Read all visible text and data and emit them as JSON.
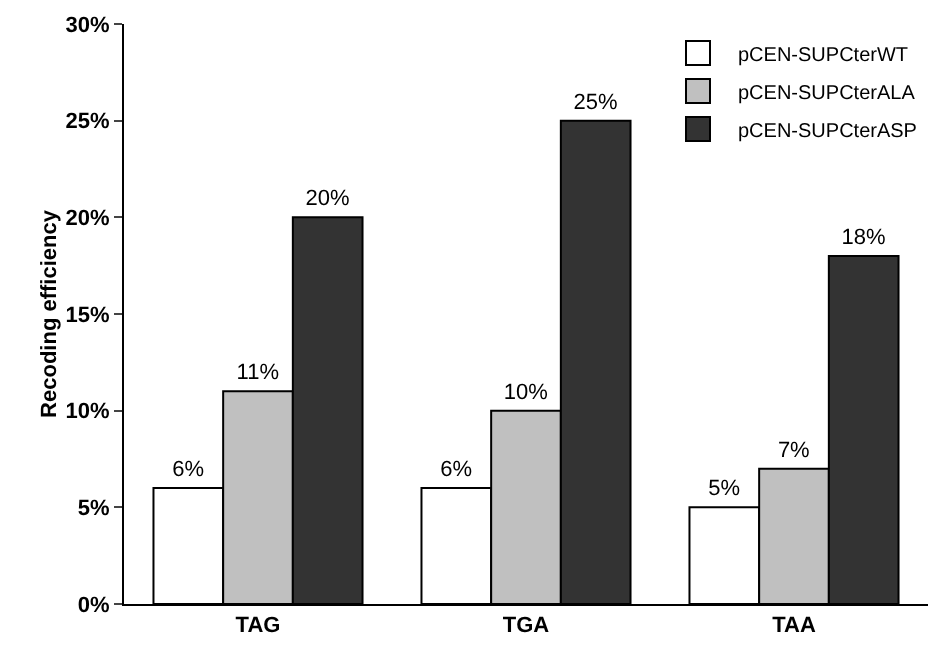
{
  "chart_data": {
    "type": "bar",
    "ylabel": "Recoding efficiency",
    "categories": [
      "TAG",
      "TGA",
      "TAA"
    ],
    "series": [
      {
        "name": "pCEN-SUPCterWT",
        "color": "#ffffff",
        "values": [
          6,
          6,
          5
        ],
        "value_labels": [
          "6%",
          "6%",
          "5%"
        ]
      },
      {
        "name": "pCEN-SUPCterALA",
        "color": "#c0c0c0",
        "values": [
          11,
          10,
          7
        ],
        "value_labels": [
          "11%",
          "10%",
          "7%"
        ]
      },
      {
        "name": "pCEN-SUPCterASP",
        "color": "#333333",
        "values": [
          20,
          25,
          18
        ],
        "value_labels": [
          "20%",
          "25%",
          "18%"
        ]
      }
    ],
    "ylim": [
      0,
      30
    ],
    "yticks": [
      {
        "value": 0,
        "label": "0%"
      },
      {
        "value": 5,
        "label": "5%"
      },
      {
        "value": 10,
        "label": "10%"
      },
      {
        "value": 15,
        "label": "15%"
      },
      {
        "value": 20,
        "label": "20%"
      },
      {
        "value": 25,
        "label": "25%"
      },
      {
        "value": 30,
        "label": "30%"
      }
    ],
    "grid": false,
    "legend": "top right"
  }
}
